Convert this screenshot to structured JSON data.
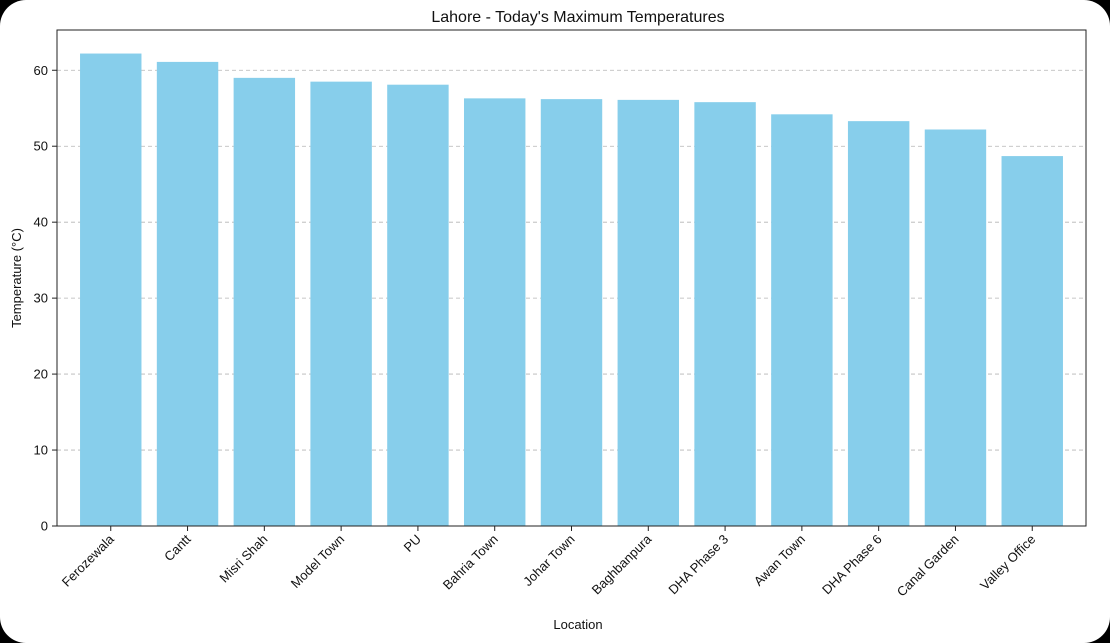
{
  "chart_data": {
    "type": "bar",
    "title": "Lahore - Today's Maximum Temperatures",
    "xlabel": "Location",
    "ylabel": "Temperature (°C)",
    "categories": [
      "Ferozewala",
      "Cantt",
      "Misri Shah",
      "Model Town",
      "PU",
      "Bahria Town",
      "Johar Town",
      "Baghbanpura",
      "DHA Phase 3",
      "Awan Town",
      "DHA Phase 6",
      "Canal Garden",
      "Valley Office"
    ],
    "values": [
      62.2,
      61.1,
      59.0,
      58.5,
      58.1,
      56.3,
      56.2,
      56.1,
      55.8,
      54.2,
      53.3,
      52.2,
      48.7
    ],
    "ylim": [
      0,
      65.3
    ],
    "yticks": [
      0,
      10,
      20,
      30,
      40,
      50,
      60
    ],
    "grid": "y-dashed",
    "bar_color": "#87ceeb",
    "legend": "none"
  }
}
